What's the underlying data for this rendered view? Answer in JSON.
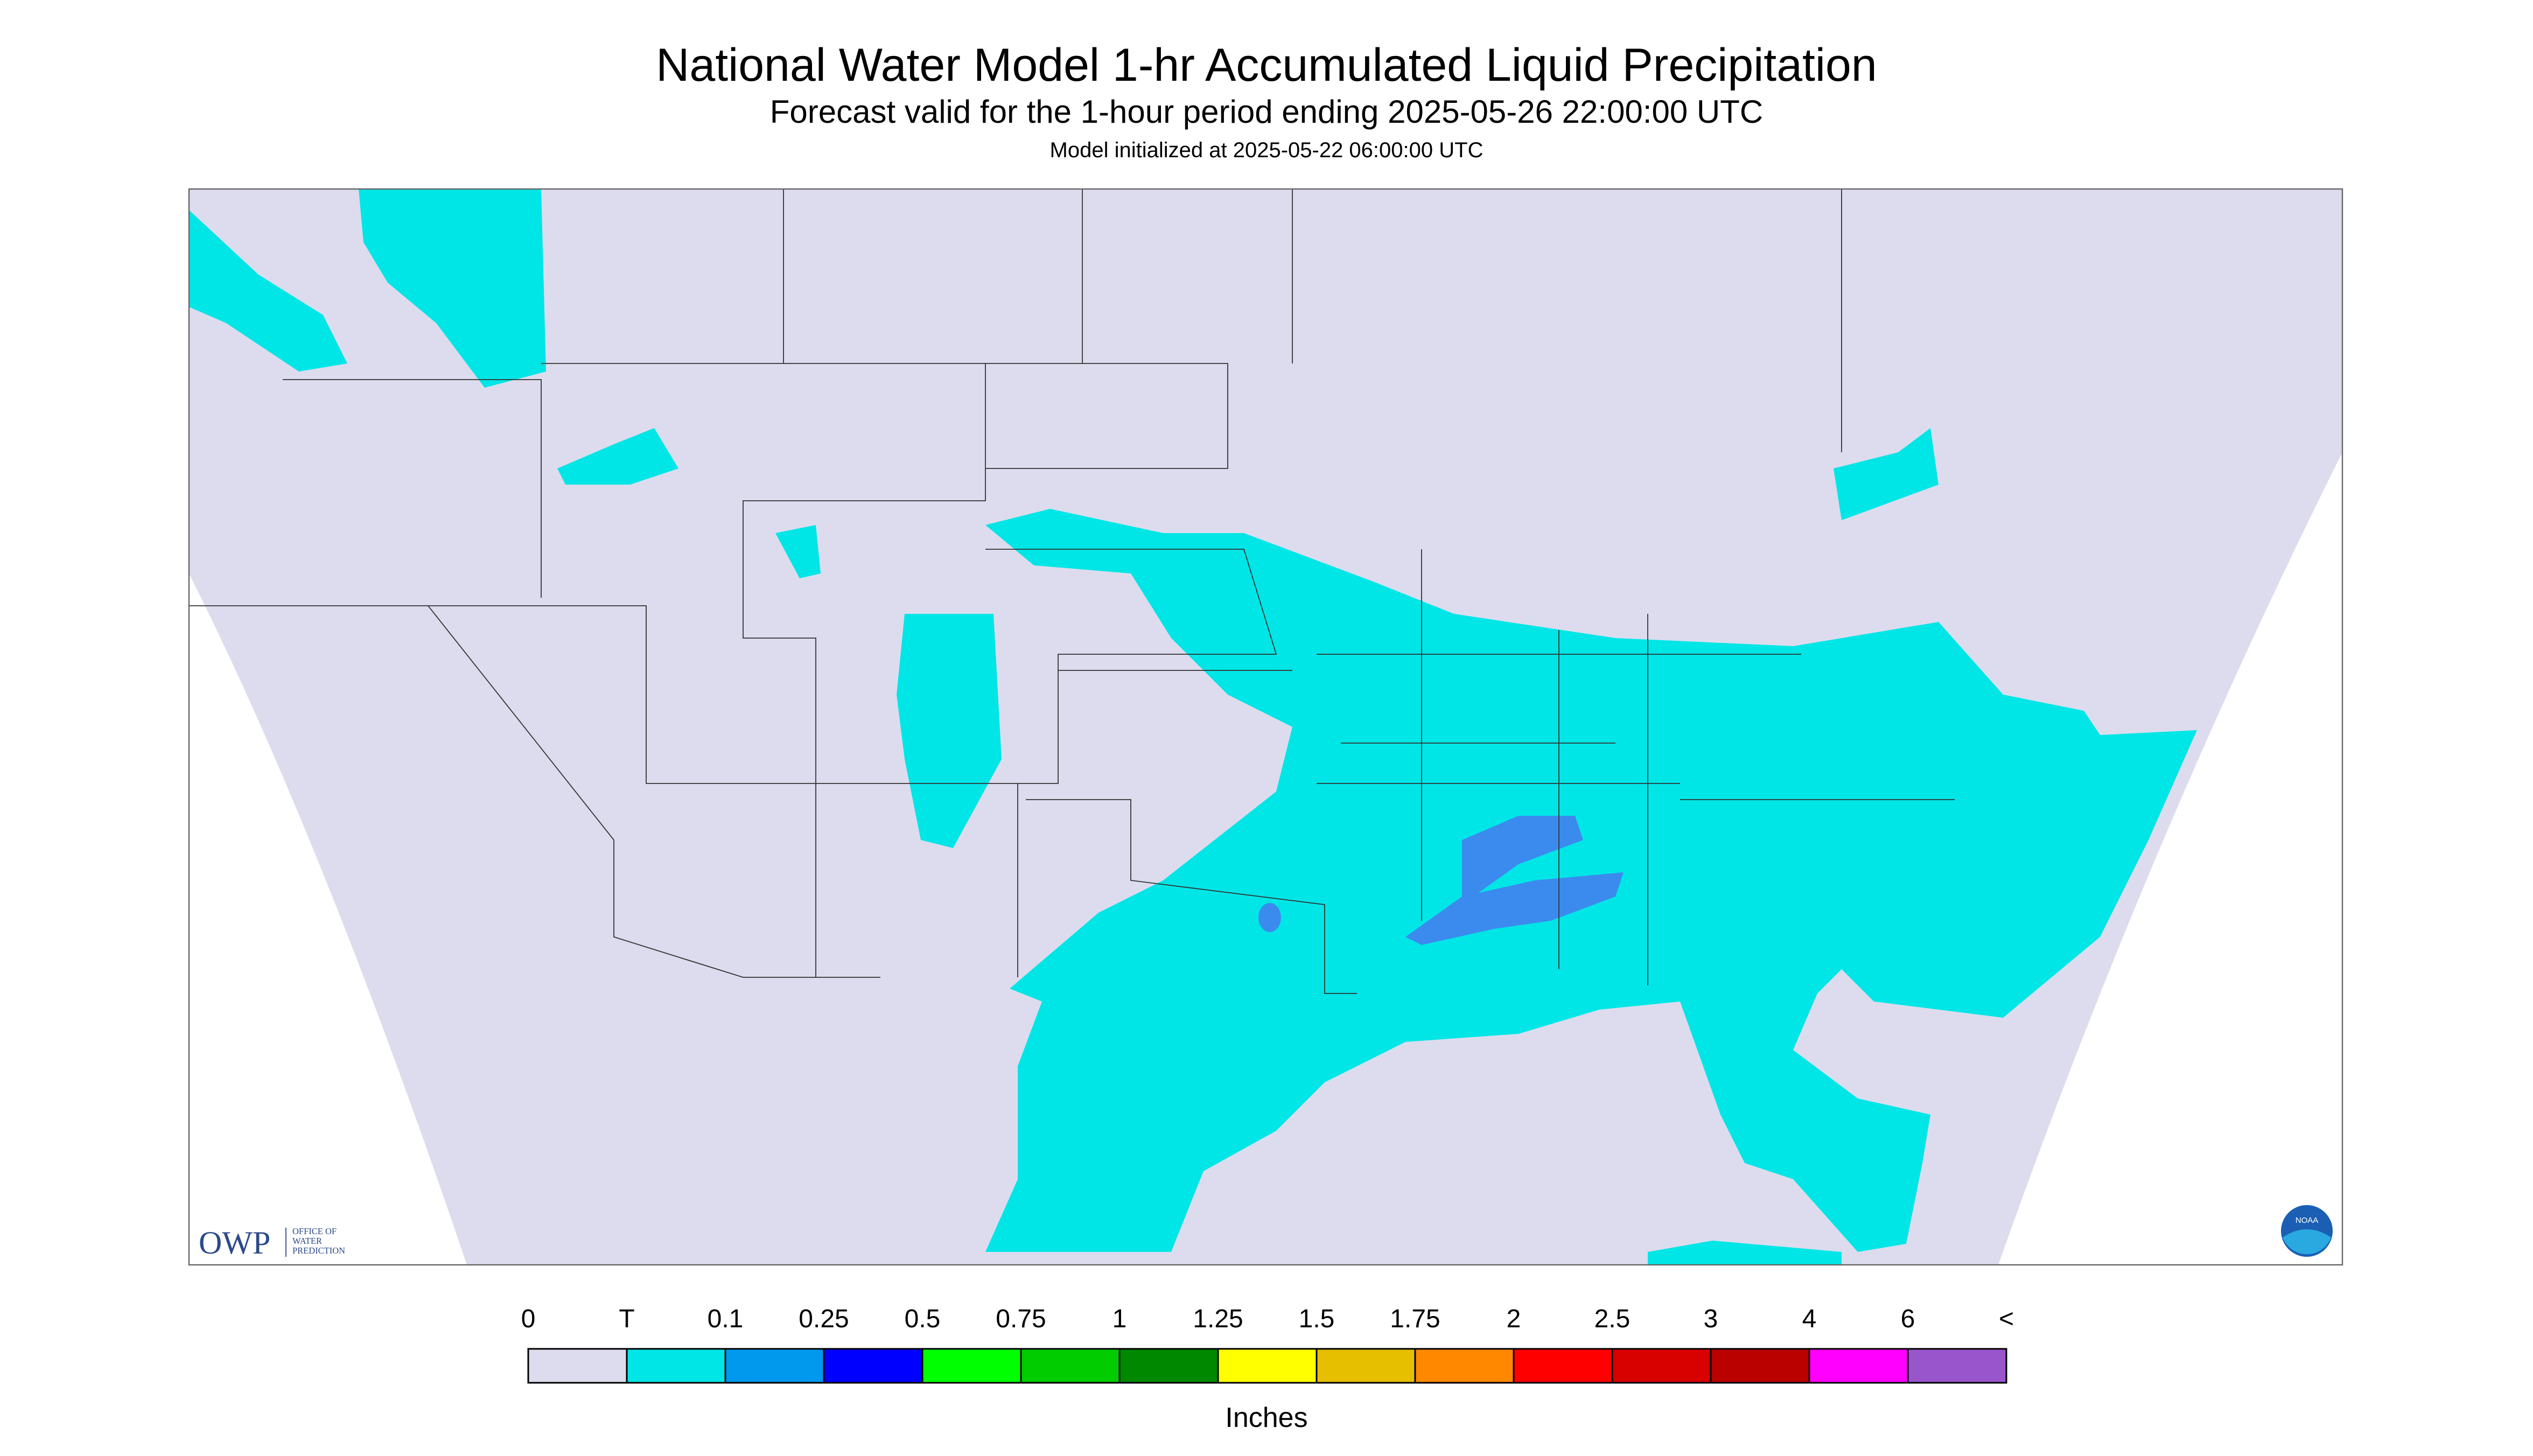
{
  "header": {
    "title": "National Water Model 1-hr Accumulated Liquid Precipitation",
    "subtitle": "Forecast valid for the 1-hour period ending 2025-05-26 22:00:00 UTC",
    "note": "Model initialized at 2025-05-22 06:00:00 UTC"
  },
  "logo": {
    "name": "OWP",
    "lines": [
      "OFFICE OF",
      "WATER",
      "PREDICTION"
    ],
    "agency": "NOAA"
  },
  "legend": {
    "labels": [
      "0",
      "T",
      "0.1",
      "0.25",
      "0.5",
      "0.75",
      "1",
      "1.25",
      "1.5",
      "1.75",
      "2",
      "2.5",
      "3",
      "4",
      "6",
      "<"
    ],
    "colors": [
      "#dcdcee",
      "#00e6e6",
      "#0099ee",
      "#0000ff",
      "#00ff00",
      "#00cc00",
      "#008800",
      "#ffff00",
      "#e5bf00",
      "#ff8800",
      "#ff0000",
      "#d90000",
      "#bb0000",
      "#ff00ff",
      "#9955cc"
    ],
    "unit": "Inches"
  }
}
